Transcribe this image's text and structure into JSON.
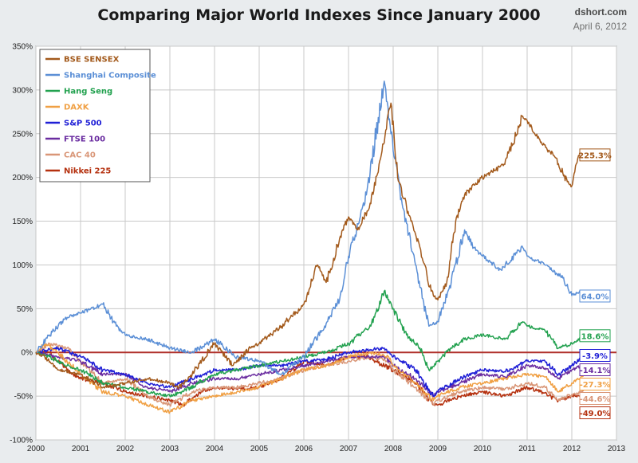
{
  "header": {
    "title": "Comparing Major World Indexes Since January 2000",
    "source": "dshort.com",
    "date": "April 6, 2012"
  },
  "chart_data": {
    "type": "line",
    "title": "Comparing Major World Indexes Since January 2000",
    "xlabel": "",
    "ylabel": "",
    "xlim": [
      2000,
      2013
    ],
    "ylim": [
      -100,
      350
    ],
    "x_ticks": [
      "2000",
      "2001",
      "2002",
      "2003",
      "2004",
      "2005",
      "2006",
      "2007",
      "2008",
      "2009",
      "2010",
      "2011",
      "2012",
      "2013"
    ],
    "y_ticks": [
      "-100%",
      "-50%",
      "0%",
      "50%",
      "100%",
      "150%",
      "200%",
      "250%",
      "300%",
      "350%"
    ],
    "grid": true,
    "legend_position": "top-left",
    "reference_line": 0,
    "series": [
      {
        "name": "BSE SENSEX",
        "color": "#a35a1c",
        "end_label": "225.3%",
        "points": [
          [
            2000,
            0
          ],
          [
            2000.2,
            -5
          ],
          [
            2000.5,
            -20
          ],
          [
            2001,
            -25
          ],
          [
            2001.5,
            -40
          ],
          [
            2002,
            -35
          ],
          [
            2002.5,
            -30
          ],
          [
            2003,
            -35
          ],
          [
            2003.2,
            -40
          ],
          [
            2003.5,
            -25
          ],
          [
            2004,
            10
          ],
          [
            2004.4,
            -15
          ],
          [
            2004.8,
            5
          ],
          [
            2005,
            10
          ],
          [
            2005.5,
            30
          ],
          [
            2006,
            55
          ],
          [
            2006.3,
            100
          ],
          [
            2006.5,
            80
          ],
          [
            2006.8,
            130
          ],
          [
            2007,
            155
          ],
          [
            2007.2,
            140
          ],
          [
            2007.5,
            170
          ],
          [
            2007.75,
            230
          ],
          [
            2007.95,
            285
          ],
          [
            2008.1,
            200
          ],
          [
            2008.4,
            150
          ],
          [
            2008.6,
            120
          ],
          [
            2008.85,
            70
          ],
          [
            2009,
            60
          ],
          [
            2009.2,
            80
          ],
          [
            2009.4,
            150
          ],
          [
            2009.6,
            180
          ],
          [
            2010,
            200
          ],
          [
            2010.5,
            215
          ],
          [
            2010.9,
            270
          ],
          [
            2011,
            265
          ],
          [
            2011.3,
            240
          ],
          [
            2011.6,
            225
          ],
          [
            2011.9,
            195
          ],
          [
            2012,
            190
          ],
          [
            2012.15,
            225
          ],
          [
            2012.26,
            225.3
          ]
        ]
      },
      {
        "name": "Shanghai Composite",
        "color": "#5b8fd6",
        "end_label": "64.0%",
        "points": [
          [
            2000,
            0
          ],
          [
            2000.3,
            20
          ],
          [
            2000.7,
            40
          ],
          [
            2001,
            45
          ],
          [
            2001.5,
            55
          ],
          [
            2001.8,
            30
          ],
          [
            2002,
            20
          ],
          [
            2002.5,
            15
          ],
          [
            2003,
            5
          ],
          [
            2003.5,
            0
          ],
          [
            2004,
            15
          ],
          [
            2004.5,
            -5
          ],
          [
            2005,
            -10
          ],
          [
            2005.5,
            -25
          ],
          [
            2006,
            -5
          ],
          [
            2006.4,
            25
          ],
          [
            2006.8,
            60
          ],
          [
            2007,
            110
          ],
          [
            2007.4,
            180
          ],
          [
            2007.8,
            310
          ],
          [
            2007.95,
            250
          ],
          [
            2008.2,
            170
          ],
          [
            2008.5,
            100
          ],
          [
            2008.8,
            30
          ],
          [
            2009,
            35
          ],
          [
            2009.3,
            80
          ],
          [
            2009.6,
            140
          ],
          [
            2009.8,
            120
          ],
          [
            2010,
            110
          ],
          [
            2010.4,
            95
          ],
          [
            2010.9,
            120
          ],
          [
            2011,
            110
          ],
          [
            2011.4,
            100
          ],
          [
            2011.8,
            85
          ],
          [
            2012,
            65
          ],
          [
            2012.2,
            70
          ],
          [
            2012.26,
            64
          ]
        ]
      },
      {
        "name": "Hang Seng",
        "color": "#22a14f",
        "end_label": "18.6%",
        "points": [
          [
            2000,
            0
          ],
          [
            2000.3,
            -5
          ],
          [
            2000.7,
            -15
          ],
          [
            2001,
            -20
          ],
          [
            2001.5,
            -35
          ],
          [
            2002,
            -40
          ],
          [
            2002.5,
            -45
          ],
          [
            2003,
            -50
          ],
          [
            2003.3,
            -45
          ],
          [
            2003.8,
            -30
          ],
          [
            2004,
            -25
          ],
          [
            2004.5,
            -20
          ],
          [
            2005,
            -15
          ],
          [
            2005.5,
            -10
          ],
          [
            2006,
            -5
          ],
          [
            2006.5,
            0
          ],
          [
            2007,
            10
          ],
          [
            2007.5,
            30
          ],
          [
            2007.8,
            70
          ],
          [
            2008,
            50
          ],
          [
            2008.3,
            20
          ],
          [
            2008.6,
            5
          ],
          [
            2008.8,
            -20
          ],
          [
            2009,
            -10
          ],
          [
            2009.3,
            5
          ],
          [
            2009.6,
            15
          ],
          [
            2010,
            20
          ],
          [
            2010.5,
            15
          ],
          [
            2010.9,
            35
          ],
          [
            2011,
            30
          ],
          [
            2011.4,
            25
          ],
          [
            2011.7,
            5
          ],
          [
            2012,
            10
          ],
          [
            2012.26,
            18.6
          ]
        ]
      },
      {
        "name": "DAXK",
        "color": "#f0a044",
        "end_label": "-27.3%",
        "points": [
          [
            2000,
            0
          ],
          [
            2000.2,
            10
          ],
          [
            2000.5,
            0
          ],
          [
            2001,
            -25
          ],
          [
            2001.5,
            -45
          ],
          [
            2002,
            -50
          ],
          [
            2002.5,
            -60
          ],
          [
            2003,
            -68
          ],
          [
            2003.5,
            -55
          ],
          [
            2004,
            -50
          ],
          [
            2004.5,
            -45
          ],
          [
            2005,
            -40
          ],
          [
            2005.5,
            -30
          ],
          [
            2006,
            -20
          ],
          [
            2006.5,
            -15
          ],
          [
            2007,
            -5
          ],
          [
            2007.5,
            0
          ],
          [
            2007.9,
            -5
          ],
          [
            2008,
            -15
          ],
          [
            2008.5,
            -35
          ],
          [
            2008.9,
            -55
          ],
          [
            2009,
            -50
          ],
          [
            2009.5,
            -40
          ],
          [
            2010,
            -35
          ],
          [
            2010.5,
            -30
          ],
          [
            2011,
            -25
          ],
          [
            2011.4,
            -28
          ],
          [
            2011.7,
            -45
          ],
          [
            2012,
            -35
          ],
          [
            2012.26,
            -27.3
          ]
        ]
      },
      {
        "name": "S&P 500",
        "color": "#1f1fd6",
        "end_label": "-3.9%",
        "points": [
          [
            2000,
            0
          ],
          [
            2000.5,
            5
          ],
          [
            2001,
            -5
          ],
          [
            2001.5,
            -20
          ],
          [
            2002,
            -25
          ],
          [
            2002.5,
            -35
          ],
          [
            2003,
            -40
          ],
          [
            2003.5,
            -30
          ],
          [
            2004,
            -20
          ],
          [
            2004.5,
            -20
          ],
          [
            2005,
            -15
          ],
          [
            2005.5,
            -15
          ],
          [
            2006,
            -10
          ],
          [
            2006.5,
            -8
          ],
          [
            2007,
            0
          ],
          [
            2007.8,
            5
          ],
          [
            2008,
            -5
          ],
          [
            2008.5,
            -20
          ],
          [
            2008.9,
            -50
          ],
          [
            2009,
            -45
          ],
          [
            2009.5,
            -30
          ],
          [
            2010,
            -20
          ],
          [
            2010.5,
            -22
          ],
          [
            2011,
            -10
          ],
          [
            2011.4,
            -10
          ],
          [
            2011.7,
            -25
          ],
          [
            2012,
            -15
          ],
          [
            2012.26,
            -3.9
          ]
        ]
      },
      {
        "name": "FTSE 100",
        "color": "#6a2ca0",
        "end_label": "-14.1%",
        "points": [
          [
            2000,
            0
          ],
          [
            2000.5,
            -5
          ],
          [
            2001,
            -10
          ],
          [
            2001.5,
            -25
          ],
          [
            2002,
            -25
          ],
          [
            2002.5,
            -40
          ],
          [
            2003,
            -45
          ],
          [
            2003.5,
            -35
          ],
          [
            2004,
            -30
          ],
          [
            2004.5,
            -30
          ],
          [
            2005,
            -25
          ],
          [
            2005.5,
            -20
          ],
          [
            2006,
            -15
          ],
          [
            2006.5,
            -10
          ],
          [
            2007,
            -5
          ],
          [
            2007.8,
            -5
          ],
          [
            2008,
            -15
          ],
          [
            2008.5,
            -30
          ],
          [
            2008.9,
            -50
          ],
          [
            2009,
            -45
          ],
          [
            2009.5,
            -35
          ],
          [
            2010,
            -25
          ],
          [
            2010.5,
            -28
          ],
          [
            2011,
            -15
          ],
          [
            2011.4,
            -18
          ],
          [
            2011.7,
            -30
          ],
          [
            2012,
            -20
          ],
          [
            2012.26,
            -14.1
          ]
        ]
      },
      {
        "name": "CAC 40",
        "color": "#d99677",
        "end_label": "-44.6%",
        "points": [
          [
            2000,
            0
          ],
          [
            2000.3,
            10
          ],
          [
            2000.7,
            5
          ],
          [
            2001,
            -10
          ],
          [
            2001.5,
            -35
          ],
          [
            2002,
            -30
          ],
          [
            2002.5,
            -50
          ],
          [
            2003,
            -60
          ],
          [
            2003.5,
            -45
          ],
          [
            2004,
            -40
          ],
          [
            2004.5,
            -40
          ],
          [
            2005,
            -35
          ],
          [
            2005.5,
            -30
          ],
          [
            2006,
            -20
          ],
          [
            2006.5,
            -15
          ],
          [
            2007,
            -10
          ],
          [
            2007.5,
            -5
          ],
          [
            2007.9,
            -10
          ],
          [
            2008,
            -20
          ],
          [
            2008.5,
            -40
          ],
          [
            2008.9,
            -60
          ],
          [
            2009,
            -55
          ],
          [
            2009.5,
            -45
          ],
          [
            2010,
            -40
          ],
          [
            2010.5,
            -42
          ],
          [
            2011,
            -35
          ],
          [
            2011.4,
            -40
          ],
          [
            2011.7,
            -55
          ],
          [
            2012,
            -48
          ],
          [
            2012.26,
            -44.6
          ]
        ]
      },
      {
        "name": "Nikkei 225",
        "color": "#b5310f",
        "end_label": "-49.0%",
        "points": [
          [
            2000,
            0
          ],
          [
            2000.3,
            0
          ],
          [
            2000.7,
            -20
          ],
          [
            2001,
            -30
          ],
          [
            2001.5,
            -35
          ],
          [
            2002,
            -45
          ],
          [
            2002.5,
            -50
          ],
          [
            2003,
            -55
          ],
          [
            2003.3,
            -60
          ],
          [
            2003.7,
            -45
          ],
          [
            2004,
            -40
          ],
          [
            2004.5,
            -42
          ],
          [
            2005,
            -40
          ],
          [
            2005.5,
            -30
          ],
          [
            2006,
            -10
          ],
          [
            2006.5,
            -15
          ],
          [
            2007,
            -5
          ],
          [
            2007.4,
            -5
          ],
          [
            2008,
            -20
          ],
          [
            2008.5,
            -35
          ],
          [
            2008.9,
            -60
          ],
          [
            2009,
            -60
          ],
          [
            2009.5,
            -50
          ],
          [
            2010,
            -45
          ],
          [
            2010.5,
            -50
          ],
          [
            2011,
            -40
          ],
          [
            2011.3,
            -45
          ],
          [
            2011.7,
            -55
          ],
          [
            2012,
            -50
          ],
          [
            2012.26,
            -49
          ]
        ]
      }
    ]
  }
}
